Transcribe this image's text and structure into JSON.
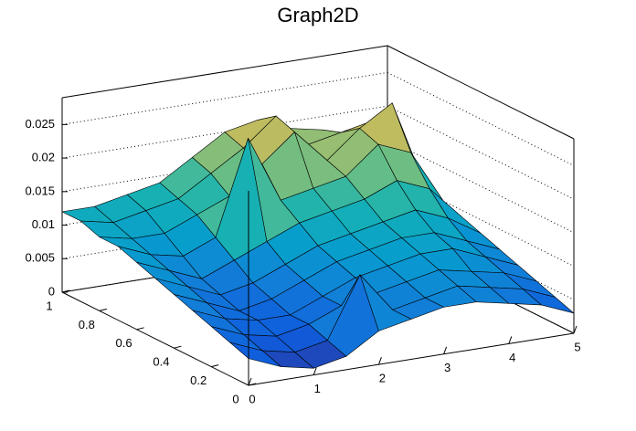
{
  "chart_data": {
    "type": "surface",
    "title": "Graph2D",
    "x": [
      0,
      0.5,
      1,
      1.5,
      2,
      2.5,
      3,
      3.5,
      4,
      4.5,
      5
    ],
    "y": [
      0,
      0.1,
      0.2,
      0.3,
      0.4,
      0.5,
      0.6,
      0.7,
      0.8,
      0.9,
      1
    ],
    "z": [
      [
        0.004,
        0.002,
        0.001,
        0.002,
        0.005,
        0.006,
        0.007,
        0.007,
        0.006,
        0.005,
        0.003
      ],
      [
        0.005,
        0.003,
        0.002,
        0.003,
        0.012,
        0.006,
        0.007,
        0.008,
        0.007,
        0.006,
        0.004
      ],
      [
        0.006,
        0.004,
        0.003,
        0.004,
        0.006,
        0.007,
        0.008,
        0.009,
        0.008,
        0.007,
        0.005
      ],
      [
        0.007,
        0.005,
        0.004,
        0.004,
        0.006,
        0.008,
        0.009,
        0.01,
        0.01,
        0.008,
        0.006
      ],
      [
        0.008,
        0.006,
        0.004,
        0.005,
        0.007,
        0.009,
        0.01,
        0.011,
        0.011,
        0.009,
        0.007
      ],
      [
        0.009,
        0.007,
        0.005,
        0.006,
        0.008,
        0.01,
        0.011,
        0.012,
        0.013,
        0.011,
        0.008
      ],
      [
        0.01,
        0.008,
        0.006,
        0.008,
        0.01,
        0.012,
        0.013,
        0.014,
        0.016,
        0.014,
        0.009
      ],
      [
        0.011,
        0.009,
        0.008,
        0.01,
        0.024,
        0.014,
        0.015,
        0.016,
        0.02,
        0.018,
        0.01
      ],
      [
        0.011,
        0.01,
        0.01,
        0.012,
        0.014,
        0.018,
        0.022,
        0.017,
        0.021,
        0.024,
        0.011
      ],
      [
        0.012,
        0.011,
        0.012,
        0.013,
        0.016,
        0.019,
        0.023,
        0.018,
        0.019,
        0.02,
        0.011
      ],
      [
        0.012,
        0.012,
        0.013,
        0.014,
        0.017,
        0.02,
        0.021,
        0.019,
        0.018,
        0.016,
        0.011
      ]
    ],
    "xlim": [
      0,
      5
    ],
    "xticks": [
      0,
      1,
      2,
      3,
      4,
      5
    ],
    "ylim": [
      0,
      1
    ],
    "yticks": [
      0,
      0.2,
      0.4,
      0.6,
      0.8,
      1
    ],
    "zlim": [
      0,
      0.029
    ],
    "zticks": [
      0,
      0.005,
      0.01,
      0.015,
      0.02,
      0.025
    ],
    "grid": true
  }
}
